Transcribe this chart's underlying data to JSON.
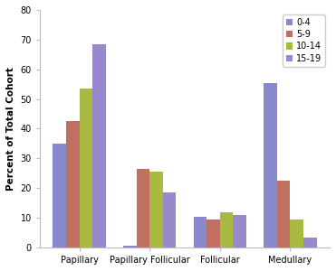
{
  "categories": [
    "Papillary",
    "Papillary Follicular",
    "Follicular",
    "Medullary"
  ],
  "series": {
    "0-4": [
      35,
      0.5,
      10.3,
      55.5
    ],
    "5-9": [
      42.5,
      26.5,
      9.5,
      22.5
    ],
    "10-14": [
      53.5,
      25.5,
      12,
      9.5
    ],
    "15-19": [
      68.5,
      18.5,
      11,
      3.5
    ]
  },
  "bar_colors": {
    "0-4": "#8888cc",
    "5-9": "#c07060",
    "10-14": "#aaba40",
    "15-19": "#9988cc"
  },
  "ylabel": "Percent of Total Cohort",
  "ylim": [
    0,
    80
  ],
  "yticks": [
    0,
    10,
    20,
    30,
    40,
    50,
    60,
    70,
    80
  ],
  "legend_order": [
    "0-4",
    "5-9",
    "10-14",
    "15-19"
  ],
  "background_color": "#ffffff"
}
